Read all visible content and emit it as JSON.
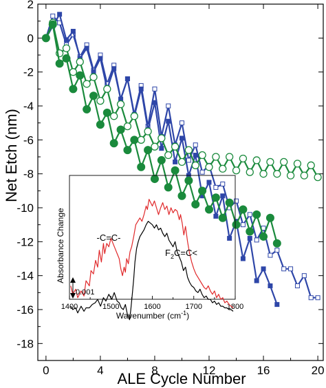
{
  "chart_data": {
    "type": "line",
    "xlabel": "ALE Cycle Number",
    "ylabel": "Net Etch (nm)",
    "xlim": [
      -0.6,
      20.4
    ],
    "ylim": [
      -19,
      2
    ],
    "xticks": [
      "0",
      "4",
      "8",
      "12",
      "16",
      "20"
    ],
    "yticks": [
      "2",
      "0",
      "-2",
      "-4",
      "-6",
      "-8",
      "-10",
      "-12",
      "-14",
      "-16",
      "-18"
    ],
    "grid": false,
    "colors": {
      "blue": "#2e46a8",
      "green": "#1a8a3c"
    },
    "series": [
      {
        "marker": "open-square",
        "color": "#2e46a8",
        "x": [
          0,
          0.5,
          1,
          1.5,
          2,
          2.5,
          3,
          3.5,
          4,
          4.5,
          5,
          5.5,
          6,
          6.5,
          7,
          7.5,
          8,
          8.5,
          9,
          9.5,
          10,
          10.5,
          11,
          11.5,
          12,
          12.5,
          13,
          13.5,
          14,
          14.5,
          15,
          15.5,
          16,
          16.5,
          17,
          17.5,
          18,
          18.5,
          19,
          19.5,
          20
        ],
        "y": [
          0,
          1.3,
          0.9,
          -0.4,
          0.2,
          -1.1,
          -0.4,
          -1.9,
          -1.0,
          -2.7,
          -1.6,
          -3.6,
          -2.4,
          -4.5,
          -2.8,
          -5.2,
          -3.0,
          -5.8,
          -4.0,
          -6.3,
          -5.0,
          -7.2,
          -6.3,
          -7.9,
          -7.5,
          -8.8,
          -8.6,
          -10.0,
          -9.6,
          -11.0,
          -10.4,
          -11.9,
          -11.2,
          -12.8,
          -12.5,
          -13.6,
          -13.6,
          -14.6,
          -14.0,
          -15.3,
          -15.3
        ]
      },
      {
        "marker": "filled-square",
        "color": "#2e46a8",
        "x": [
          0,
          0.5,
          1,
          1.5,
          2,
          2.5,
          3,
          3.5,
          4,
          4.5,
          5,
          5.5,
          6,
          6.5,
          7,
          7.5,
          8,
          8.5,
          9,
          9.5,
          10,
          10.5,
          11,
          11.5,
          12,
          12.5,
          13,
          13.5,
          14,
          14.5,
          15,
          15.5,
          16,
          16.5,
          17
        ],
        "y": [
          0,
          0.7,
          1.4,
          -0.1,
          0.4,
          -1.2,
          -0.6,
          -2.0,
          -1.2,
          -3.0,
          -1.8,
          -3.6,
          -2.4,
          -4.6,
          -3.0,
          -5.4,
          -3.8,
          -6.5,
          -4.9,
          -7.3,
          -5.9,
          -8.1,
          -6.9,
          -9.3,
          -8.5,
          -10.5,
          -9.3,
          -11.8,
          -10.8,
          -13.0,
          -11.8,
          -14.3,
          -13.6,
          -14.6,
          -15.7
        ]
      },
      {
        "marker": "open-circle",
        "color": "#1a8a3c",
        "x": [
          0,
          0.5,
          1,
          1.5,
          2,
          2.5,
          3,
          3.5,
          4,
          4.5,
          5,
          5.5,
          6,
          6.5,
          7,
          7.5,
          8,
          8.5,
          9,
          9.5,
          10,
          10.5,
          11,
          11.5,
          12,
          12.5,
          13,
          13.5,
          14,
          14.5,
          15,
          15.5,
          16,
          16.5,
          17,
          17.5,
          18,
          18.5,
          19,
          19.5,
          20
        ],
        "y": [
          0,
          0.9,
          -0.9,
          -0.6,
          -2.0,
          -1.4,
          -2.7,
          -2.3,
          -3.7,
          -3.0,
          -4.6,
          -3.9,
          -5.2,
          -4.6,
          -6.0,
          -5.5,
          -6.4,
          -5.9,
          -6.9,
          -6.4,
          -7.3,
          -6.6,
          -7.5,
          -6.9,
          -7.6,
          -7.0,
          -7.7,
          -7.0,
          -7.8,
          -7.1,
          -7.9,
          -7.2,
          -8.0,
          -7.3,
          -8.0,
          -7.3,
          -8.1,
          -7.4,
          -8.1,
          -7.5,
          -8.2
        ]
      },
      {
        "marker": "filled-circle",
        "color": "#1a8a3c",
        "x": [
          0,
          0.5,
          1,
          1.5,
          2,
          2.5,
          3,
          3.5,
          4,
          4.5,
          5,
          5.5,
          6,
          6.5,
          7,
          7.5,
          8,
          8.5,
          9,
          9.5,
          10,
          10.5,
          11,
          11.5,
          12,
          12.5,
          13,
          13.5,
          14,
          14.5,
          15,
          15.5,
          16,
          16.5,
          17
        ],
        "y": [
          0,
          0.8,
          -1.5,
          -1.2,
          -3.0,
          -2.2,
          -4.2,
          -3.4,
          -5.1,
          -4.4,
          -6.2,
          -5.4,
          -6.6,
          -6.0,
          -7.6,
          -6.6,
          -8.3,
          -7.2,
          -8.8,
          -7.8,
          -9.3,
          -8.4,
          -9.8,
          -9.0,
          -10.1,
          -9.4,
          -10.6,
          -9.7,
          -11.0,
          -10.1,
          -11.4,
          -10.4,
          -11.7,
          -10.6,
          -12.1
        ]
      }
    ],
    "inset": {
      "xlabel": "Wavenumber (cm",
      "xlabel_sup": "-1",
      "xlabel_end": ")",
      "ylabel": "Absorbance Change",
      "xlim": [
        1400,
        1800
      ],
      "xticks": [
        "1400",
        "1500",
        "1600",
        "1700",
        "1800"
      ],
      "scale_bar": "0.001",
      "annotations": {
        "cc_label": "-C=C-",
        "cf_label_a": "F",
        "cf_label_sub": "2",
        "cf_label_b": "C=C<"
      },
      "red_spectrum": {
        "color": "#e0282a",
        "x": [
          1403,
          1408,
          1415,
          1420,
          1428,
          1435,
          1440,
          1448,
          1452,
          1458,
          1463,
          1468,
          1472,
          1477,
          1482,
          1485,
          1490,
          1495,
          1500,
          1505,
          1510,
          1515,
          1520,
          1524,
          1528,
          1532,
          1535,
          1538,
          1542,
          1546,
          1550,
          1555,
          1560,
          1565,
          1570,
          1575,
          1580,
          1585,
          1588,
          1592,
          1596,
          1600,
          1605,
          1610,
          1615,
          1620,
          1625,
          1630,
          1635,
          1640,
          1645,
          1650,
          1655,
          1660,
          1665,
          1668,
          1672,
          1676,
          1680,
          1685,
          1690,
          1695,
          1700,
          1705,
          1710,
          1715,
          1720,
          1725,
          1730,
          1735,
          1740,
          1745,
          1750,
          1755,
          1760,
          1765,
          1770,
          1775,
          1780,
          1785,
          1790,
          1795
        ],
        "y": [
          -14.6,
          -15.1,
          -14.8,
          -15.3,
          -14.9,
          -15.2,
          -14.3,
          -14.6,
          -13.7,
          -13.9,
          -13.1,
          -13.5,
          -12.5,
          -13.2,
          -12.1,
          -12.7,
          -12.1,
          -12.3,
          -11.8,
          -12.1,
          -12.4,
          -12.7,
          -13.0,
          -13.6,
          -14.0,
          -13.5,
          -13.8,
          -13.0,
          -13.3,
          -12.6,
          -12.3,
          -11.7,
          -11.0,
          -10.8,
          -10.6,
          -10.8,
          -10.4,
          -9.9,
          -10.1,
          -9.5,
          -9.7,
          -9.9,
          -9.6,
          -10.0,
          -10.4,
          -10.0,
          -9.7,
          -10.1,
          -9.9,
          -10.4,
          -10.0,
          -10.3,
          -10.1,
          -10.2,
          -10.7,
          -10.4,
          -10.9,
          -11.6,
          -11.1,
          -12.0,
          -12.7,
          -13.2,
          -13.6,
          -13.9,
          -14.1,
          -14.3,
          -14.5,
          -14.7,
          -14.8,
          -14.6,
          -14.9,
          -15.1,
          -14.9,
          -15.3,
          -15.1,
          -15.4,
          -15.3,
          -15.6,
          -15.5,
          -15.7,
          -15.8,
          -15.9
        ]
      },
      "black_spectrum": {
        "color": "#000000",
        "x": [
          1403,
          1408,
          1415,
          1420,
          1428,
          1435,
          1440,
          1448,
          1455,
          1462,
          1468,
          1475,
          1482,
          1488,
          1495,
          1502,
          1508,
          1515,
          1520,
          1525,
          1530,
          1535,
          1540,
          1545,
          1548,
          1552,
          1555,
          1558,
          1562,
          1566,
          1570,
          1575,
          1580,
          1585,
          1590,
          1595,
          1600,
          1605,
          1610,
          1615,
          1620,
          1625,
          1630,
          1635,
          1640,
          1645,
          1650,
          1655,
          1660,
          1665,
          1670,
          1675,
          1680,
          1685,
          1690,
          1695,
          1700,
          1705,
          1710,
          1715,
          1720,
          1725,
          1730,
          1735,
          1740,
          1745,
          1750,
          1755,
          1760,
          1765,
          1770,
          1775,
          1780,
          1785,
          1790,
          1795
        ],
        "y": [
          -15.8,
          -16.0,
          -15.9,
          -16.2,
          -15.8,
          -16.1,
          -15.9,
          -15.9,
          -15.7,
          -15.6,
          -15.4,
          -15.8,
          -15.3,
          -15.5,
          -15.1,
          -15.4,
          -15.0,
          -15.5,
          -15.6,
          -15.9,
          -16.0,
          -15.7,
          -16.3,
          -16.6,
          -16.0,
          -15.0,
          -14.2,
          -13.2,
          -12.4,
          -12.0,
          -11.7,
          -11.5,
          -11.3,
          -11.0,
          -10.8,
          -10.9,
          -11.0,
          -11.2,
          -11.0,
          -11.3,
          -11.2,
          -11.5,
          -11.7,
          -11.5,
          -11.9,
          -12.1,
          -12.3,
          -12.0,
          -12.6,
          -12.9,
          -13.2,
          -13.7,
          -13.5,
          -14.1,
          -14.4,
          -14.6,
          -14.7,
          -14.9,
          -15.0,
          -14.8,
          -15.1,
          -15.3,
          -15.2,
          -15.4,
          -15.4,
          -15.6,
          -15.5,
          -15.7,
          -15.6,
          -15.8,
          -15.8,
          -15.9,
          -15.9,
          -16.0,
          -16.0,
          -16.1
        ]
      }
    }
  }
}
